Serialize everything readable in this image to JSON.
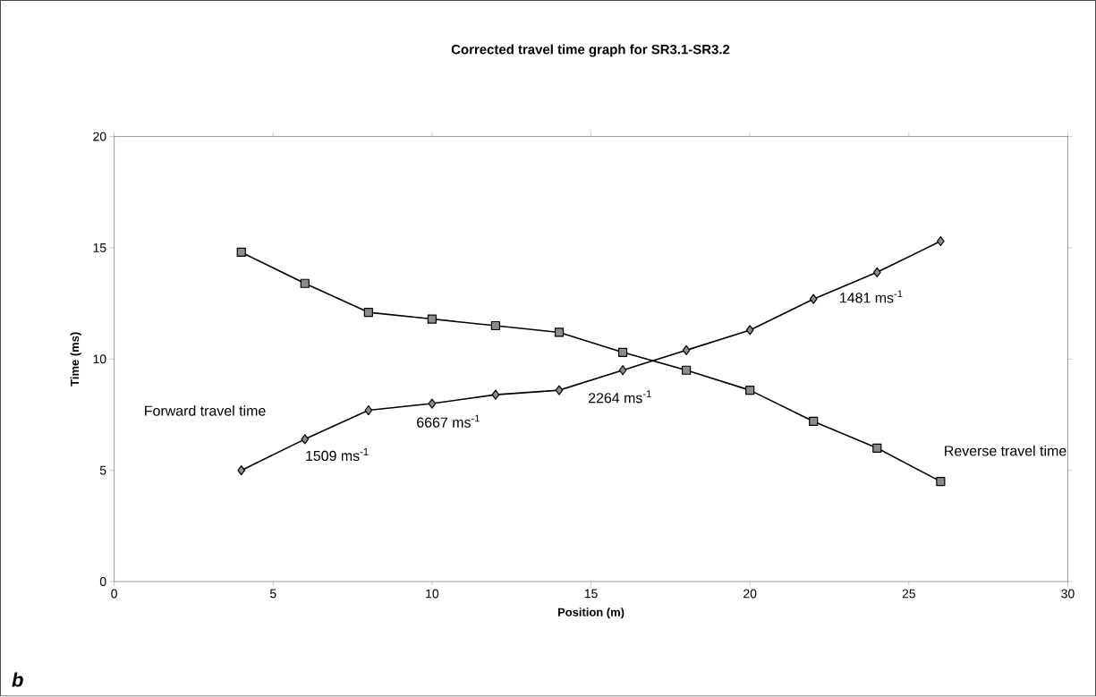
{
  "chart_data": {
    "type": "line",
    "title": "Corrected travel time graph for SR3.1-SR3.2",
    "xlabel": "Position (m)",
    "ylabel": "Time (ms)",
    "xlim": [
      0,
      30
    ],
    "xticks": [
      0,
      5,
      10,
      15,
      20,
      25,
      30
    ],
    "ylim": [
      0,
      20
    ],
    "yticks": [
      0,
      5,
      10,
      15,
      20
    ],
    "grid": false,
    "legend": false,
    "line_style": "solid",
    "series": [
      {
        "name": "Forward travel time",
        "marker": "diamond",
        "color": "#000000",
        "x": [
          4,
          6,
          8,
          10,
          12,
          14,
          16,
          18,
          20,
          22,
          24,
          26
        ],
        "values": [
          5.0,
          6.4,
          7.7,
          8.0,
          8.4,
          8.6,
          9.5,
          10.4,
          11.3,
          12.7,
          13.9,
          15.3
        ]
      },
      {
        "name": "Reverse travel time",
        "marker": "square",
        "color": "#000000",
        "x": [
          4,
          6,
          8,
          10,
          12,
          14,
          16,
          18,
          20,
          22,
          24,
          26
        ],
        "values": [
          14.8,
          13.4,
          12.1,
          11.8,
          11.5,
          11.2,
          10.3,
          9.5,
          8.6,
          7.2,
          6.0,
          4.5
        ]
      }
    ],
    "annotations": [
      "1509 ms$^{-1}$",
      "6667 ms$^{-1}$",
      "2264 ms$^{-1}$",
      "1481 ms$^{-1}$",
      "b"
    ]
  }
}
